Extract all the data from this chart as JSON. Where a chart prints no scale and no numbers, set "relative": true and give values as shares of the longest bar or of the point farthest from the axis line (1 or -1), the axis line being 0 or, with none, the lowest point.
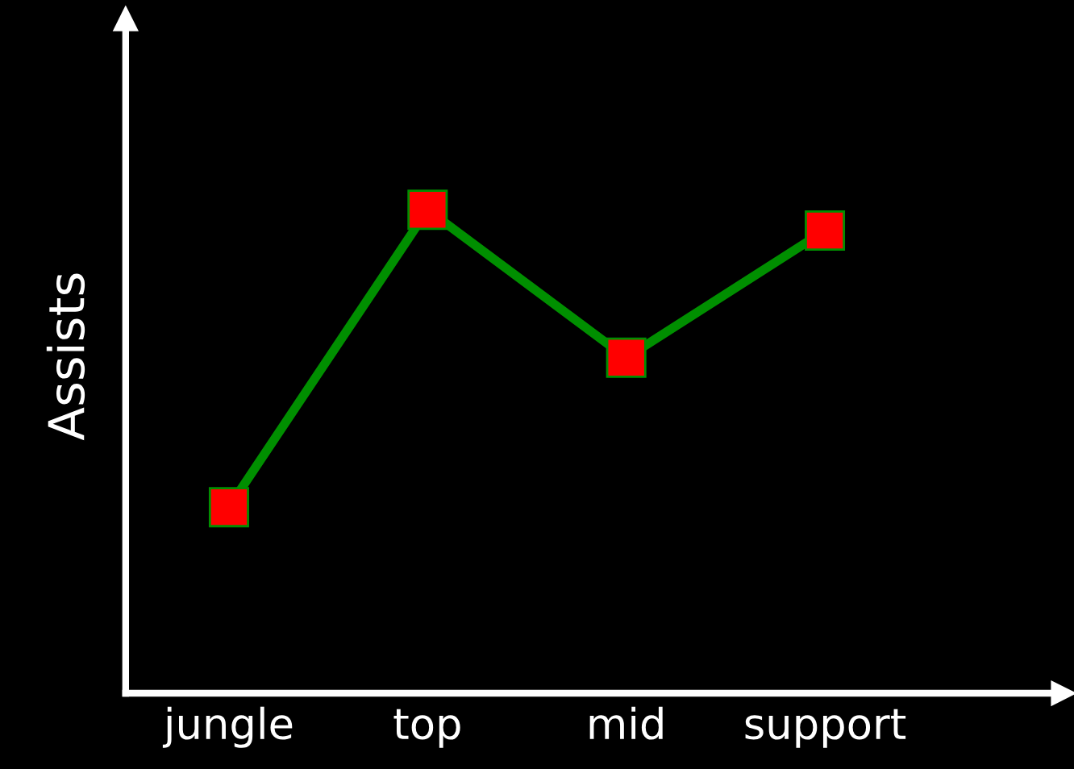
{
  "chart_data": {
    "type": "line",
    "ylabel": "Assists",
    "relative": true,
    "categories": [
      "jungle",
      "top",
      "mid",
      "support"
    ],
    "series": [
      {
        "color": "#008f00",
        "values": [
          0.385,
          1,
          0.694,
          0.957
        ]
      }
    ],
    "marker": "square",
    "line_style": "solid",
    "grid": false,
    "legend": false
  }
}
